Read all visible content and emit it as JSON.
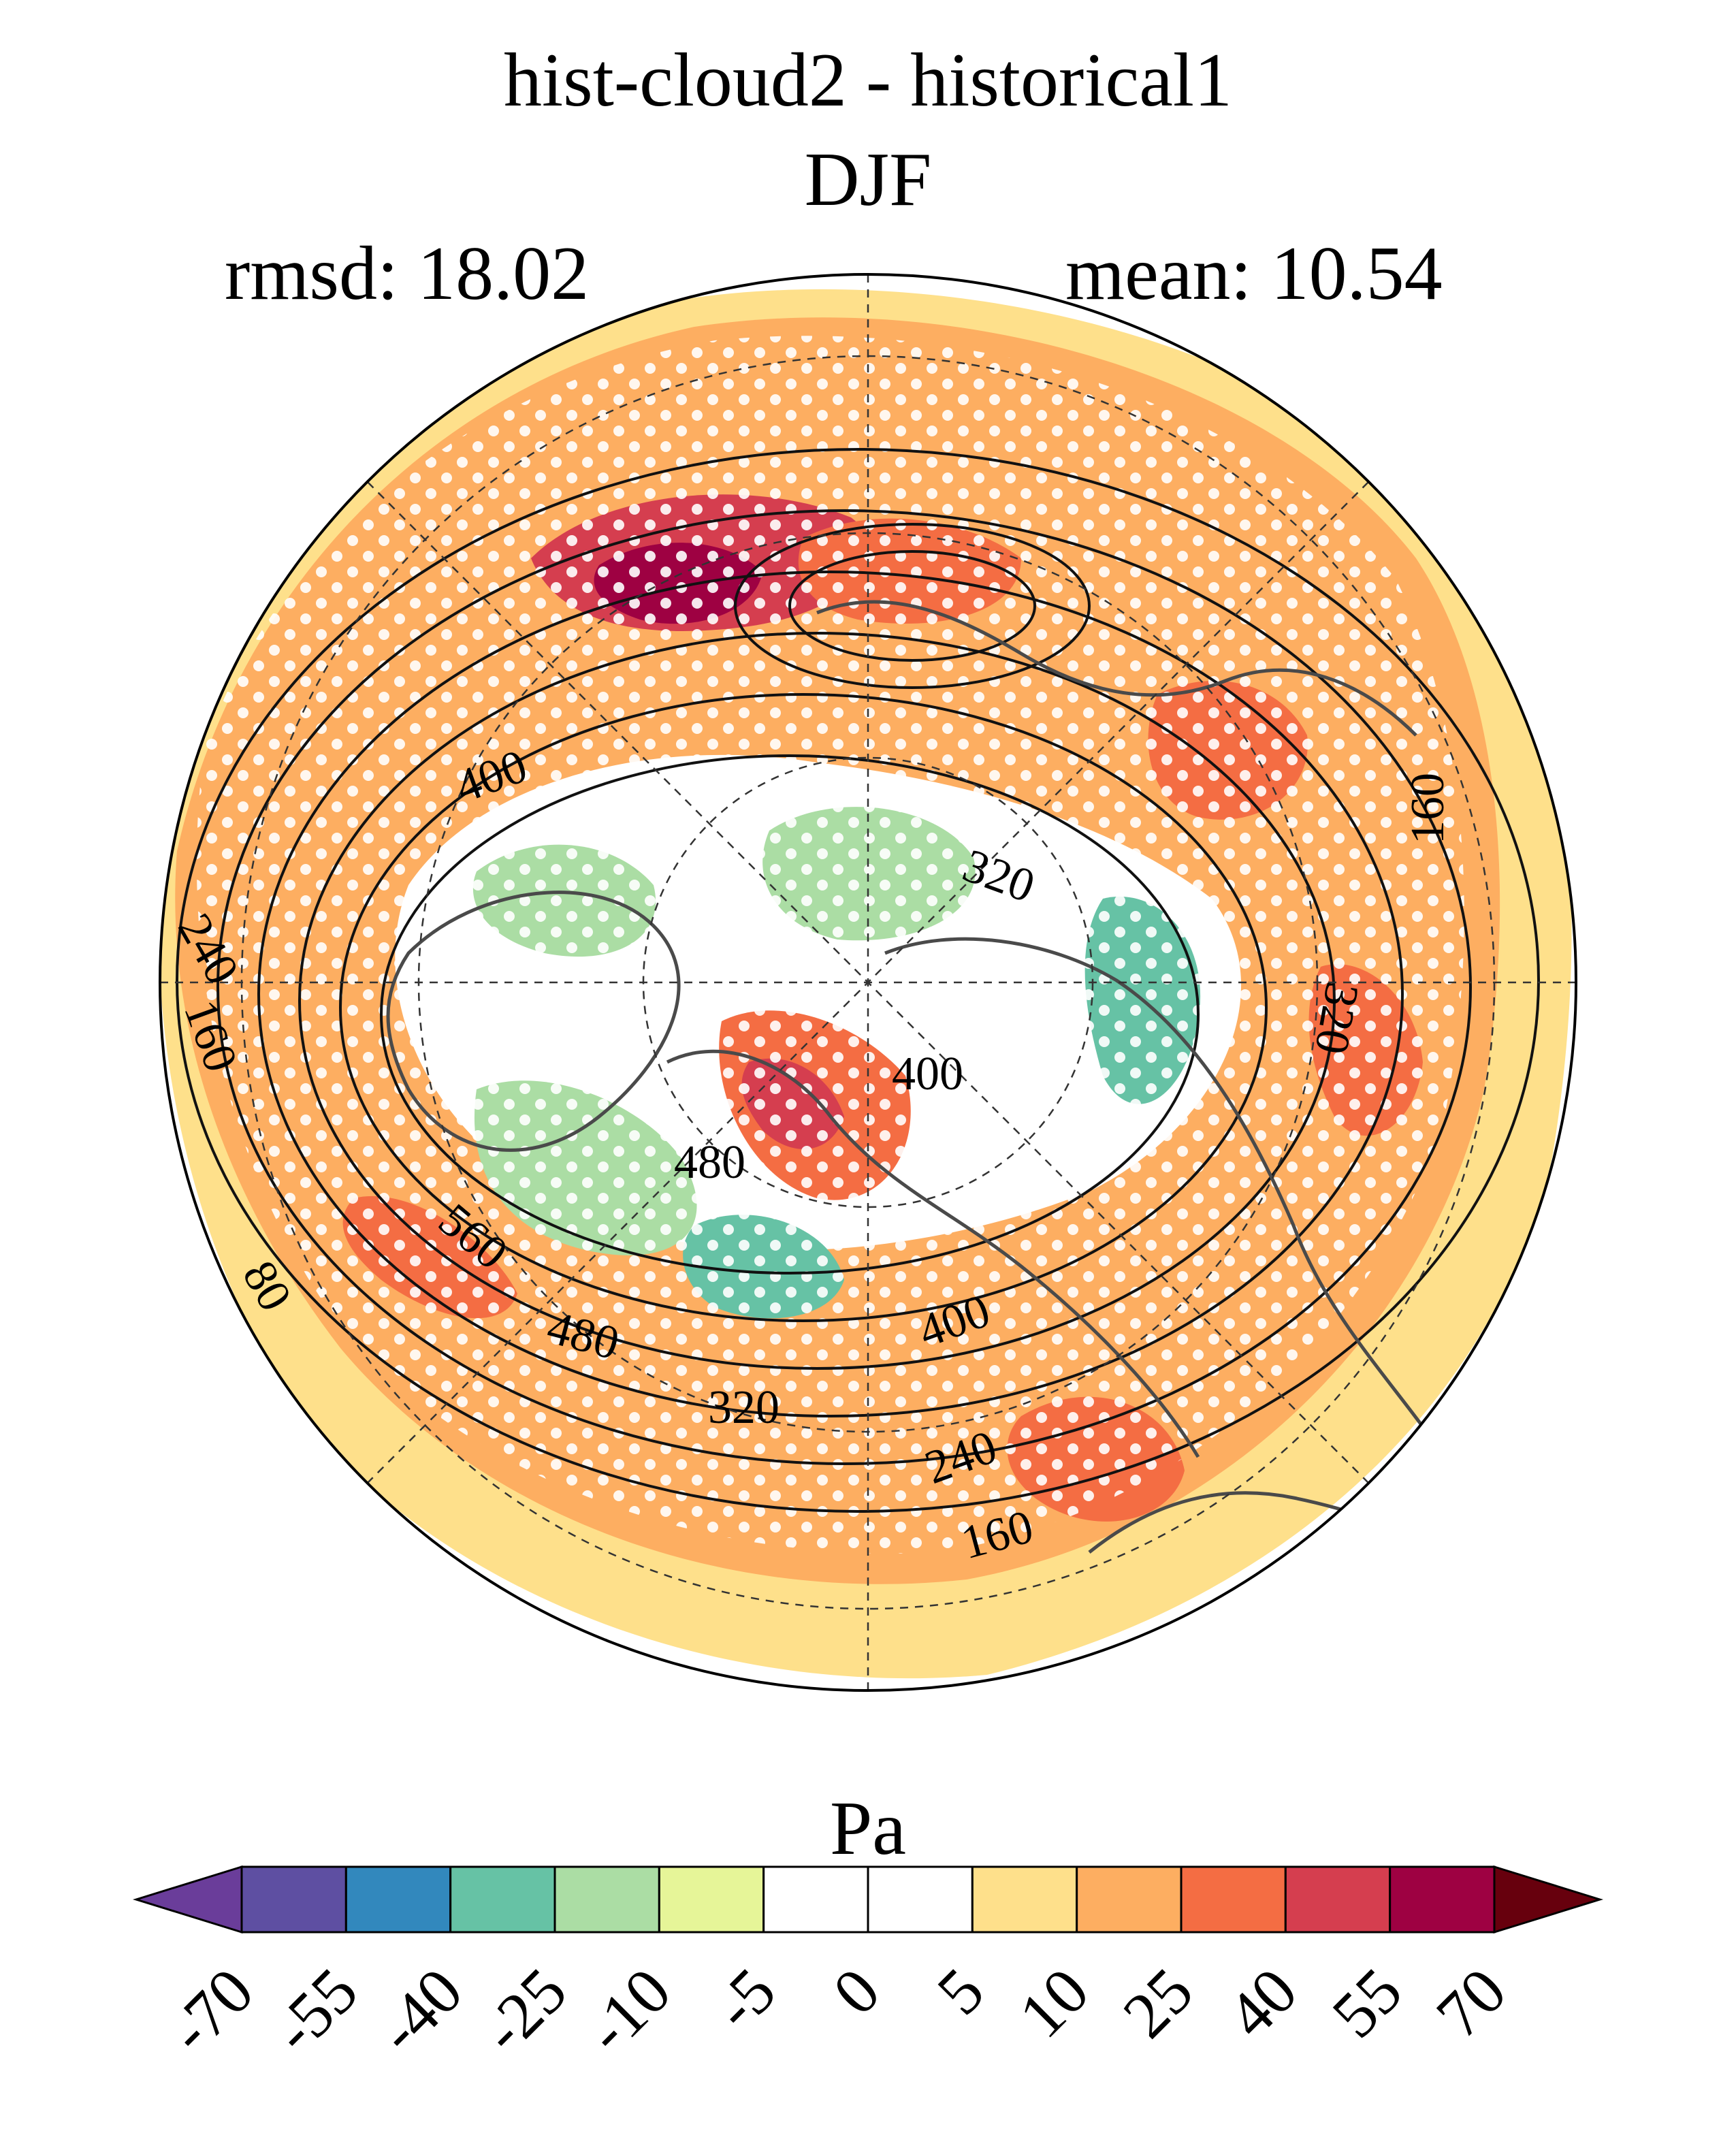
{
  "header": {
    "title_line1": "hist-cloud2 - historical1",
    "title_line2": "DJF",
    "rmsd_text": "rmsd: 18.02",
    "mean_text": "mean: 10.54"
  },
  "map": {
    "projection": "polar-stereographic-north",
    "contour_labels": [
      "400",
      "320",
      "240",
      "160",
      "400",
      "480",
      "560",
      "80",
      "480",
      "320",
      "400",
      "240",
      "160",
      "160",
      "320"
    ],
    "stippling": "white dots mark significant regions",
    "colors": {
      "land_outline": "#4a4a4a",
      "contour": "#111111",
      "grid": "#333333"
    }
  },
  "colorbar": {
    "unit": "Pa",
    "tick_labels": [
      "-70",
      "-55",
      "-40",
      "-25",
      "-10",
      "-5",
      "0",
      "5",
      "10",
      "25",
      "40",
      "55",
      "70"
    ],
    "bin_colors": [
      "#6a3d9a",
      "#5e4fa2",
      "#3288bd",
      "#66c2a5",
      "#abdda4",
      "#e6f598",
      "#ffffff",
      "#ffffff",
      "#fee08b",
      "#fdae61",
      "#f46d43",
      "#d53e4f",
      "#9e0142",
      "#67000d"
    ]
  }
}
